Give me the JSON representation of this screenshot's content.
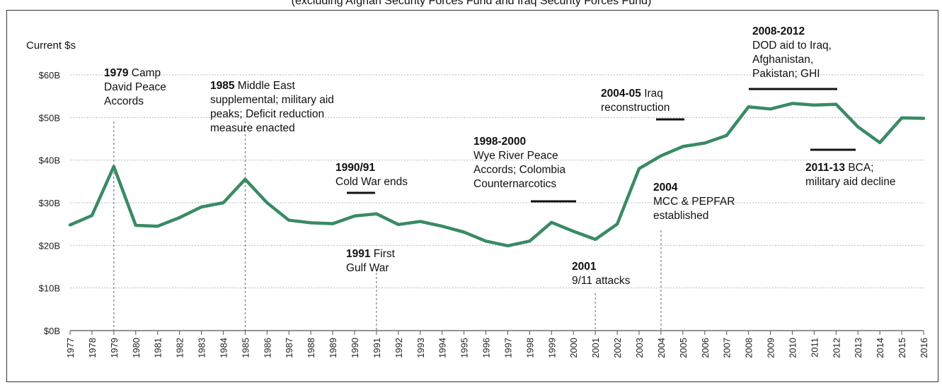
{
  "chart_data": {
    "type": "line",
    "header_text": "(excluding Afghan Security Forces Fund and Iraq Security Forces Fund)",
    "ylabel": "Current $s",
    "ylim": [
      0,
      60
    ],
    "yticks": [
      0,
      10,
      20,
      30,
      40,
      50,
      60
    ],
    "ytick_labels": [
      "$0B",
      "$10B",
      "$20B",
      "$30B",
      "$40B",
      "$50B",
      "$60B"
    ],
    "grid": true,
    "line_color": "#3a8a64",
    "x": [
      1977,
      1978,
      1979,
      1980,
      1981,
      1982,
      1983,
      1984,
      1985,
      1986,
      1987,
      1988,
      1989,
      1990,
      1991,
      1992,
      1993,
      1994,
      1995,
      1996,
      1997,
      1998,
      1999,
      2000,
      2001,
      2002,
      2003,
      2004,
      2005,
      2006,
      2007,
      2008,
      2009,
      2010,
      2011,
      2012,
      2013,
      2014,
      2015,
      2016
    ],
    "xtick_labels": [
      "1977",
      "1978",
      "1979",
      "1980",
      "1981",
      "1982",
      "1983",
      "1984",
      "1985",
      "1986",
      "1987",
      "1988",
      "1989",
      "1990",
      "1991",
      "1992",
      "1993",
      "1994",
      "1995",
      "1996",
      "1997",
      "1998",
      "1999",
      "2000",
      "2001",
      "2002",
      "2003",
      "2004",
      "2005",
      "2006",
      "2007",
      "2008",
      "2009",
      "2010",
      "2011",
      "2012",
      "2013",
      "2014",
      "2015",
      "2016"
    ],
    "values": [
      24.8,
      27.0,
      38.5,
      24.7,
      24.5,
      26.5,
      29.0,
      30.0,
      35.5,
      30.0,
      25.9,
      25.3,
      25.1,
      26.9,
      27.4,
      24.9,
      25.6,
      24.5,
      23.1,
      21.0,
      19.9,
      21.0,
      25.4,
      23.3,
      21.4,
      25.0,
      38.0,
      41.0,
      43.2,
      44.0,
      45.8,
      52.5,
      52.0,
      53.3,
      52.9,
      53.1,
      47.8,
      44.1,
      49.9,
      49.8
    ],
    "annotations": [
      {
        "bold": "1979",
        "lines": [
          " Camp",
          "David Peace",
          "Accords"
        ]
      },
      {
        "bold": "1985",
        "lines": [
          " Middle East",
          "supplemental; military aid",
          "peaks; Deficit reduction",
          "measure enacted"
        ]
      },
      {
        "bold": "1990/91",
        "lines": [
          "",
          "Cold War ends"
        ]
      },
      {
        "bold": "1991",
        "lines": [
          " First",
          "Gulf War"
        ]
      },
      {
        "bold": "1998-2000",
        "lines": [
          "",
          "Wye River Peace",
          "Accords; Colombia",
          "Counternarcotics"
        ]
      },
      {
        "bold": "2001",
        "lines": [
          "",
          "9/11 attacks"
        ]
      },
      {
        "bold": "2004-05",
        "lines": [
          " Iraq",
          "reconstruction"
        ]
      },
      {
        "bold": "2004",
        "lines": [
          "",
          "MCC & PEPFAR",
          "established"
        ]
      },
      {
        "bold": "2008-2012",
        "lines": [
          "",
          "DOD aid to Iraq,",
          "Afghanistan,",
          "Pakistan; GHI"
        ]
      },
      {
        "bold": "2011-13",
        "lines": [
          " BCA;",
          "military aid decline"
        ]
      }
    ]
  }
}
